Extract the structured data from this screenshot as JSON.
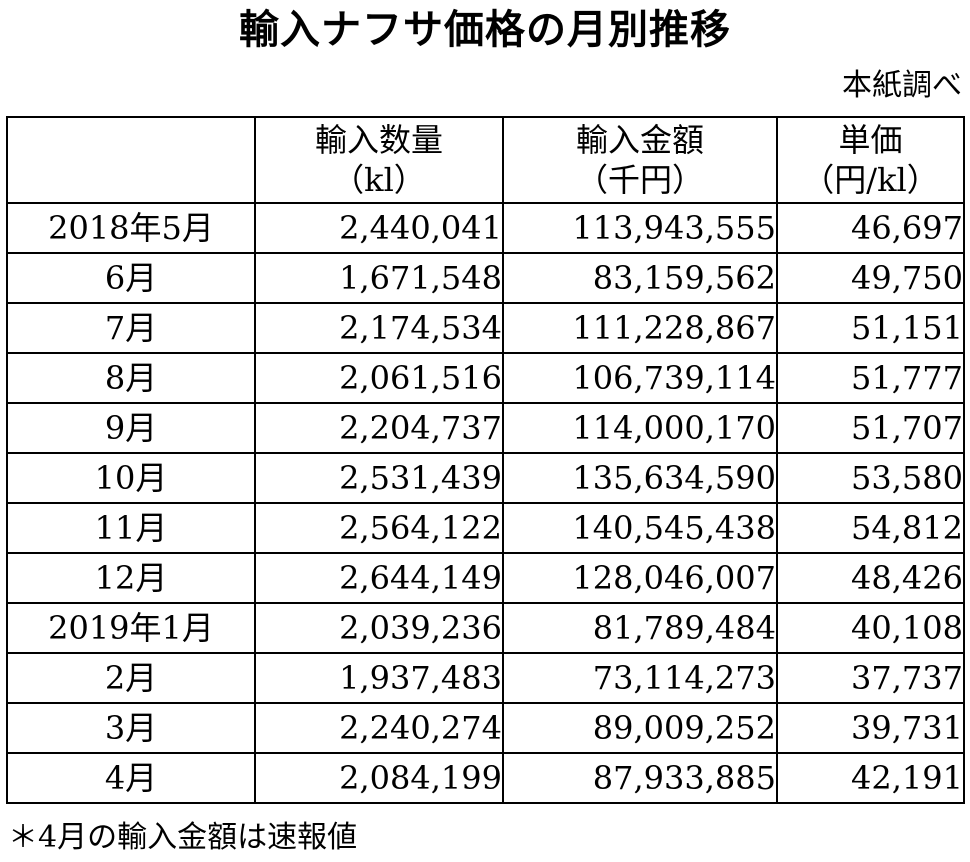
{
  "title": "輸入ナフサ価格の月別推移",
  "source": "本紙調べ",
  "table": {
    "headers": [
      {
        "line1": "",
        "line2": ""
      },
      {
        "line1": "輸入数量",
        "line2": "（kl）"
      },
      {
        "line1": "輸入金額",
        "line2": "（千円）"
      },
      {
        "line1": "単価",
        "line2": "（円/kl）"
      }
    ],
    "rows": [
      {
        "month": "2018年5月",
        "quantity": "2,440,041",
        "amount": "113,943,555",
        "unit_price": "46,697"
      },
      {
        "month": "6月",
        "quantity": "1,671,548",
        "amount": "83,159,562",
        "unit_price": "49,750"
      },
      {
        "month": "7月",
        "quantity": "2,174,534",
        "amount": "111,228,867",
        "unit_price": "51,151"
      },
      {
        "month": "8月",
        "quantity": "2,061,516",
        "amount": "106,739,114",
        "unit_price": "51,777"
      },
      {
        "month": "9月",
        "quantity": "2,204,737",
        "amount": "114,000,170",
        "unit_price": "51,707"
      },
      {
        "month": "10月",
        "quantity": "2,531,439",
        "amount": "135,634,590",
        "unit_price": "53,580"
      },
      {
        "month": "11月",
        "quantity": "2,564,122",
        "amount": "140,545,438",
        "unit_price": "54,812"
      },
      {
        "month": "12月",
        "quantity": "2,644,149",
        "amount": "128,046,007",
        "unit_price": "48,426"
      },
      {
        "month": "2019年1月",
        "quantity": "2,039,236",
        "amount": "81,789,484",
        "unit_price": "40,108"
      },
      {
        "month": "2月",
        "quantity": "1,937,483",
        "amount": "73,114,273",
        "unit_price": "37,737"
      },
      {
        "month": "3月",
        "quantity": "2,240,274",
        "amount": "89,009,252",
        "unit_price": "39,731"
      },
      {
        "month": "4月",
        "quantity": "2,084,199",
        "amount": "87,933,885",
        "unit_price": "42,191"
      }
    ]
  },
  "note": "＊4月の輸入金額は速報値"
}
